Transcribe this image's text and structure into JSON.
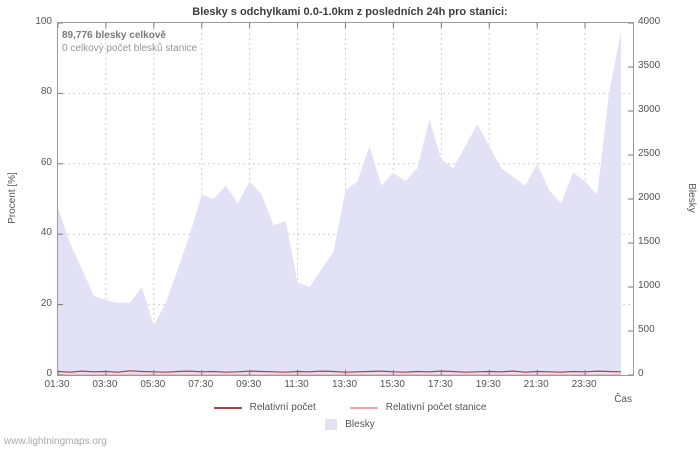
{
  "title": "Blesky s odchylkami 0.0-1.0km z posledních 24h pro stanici:",
  "annotations": {
    "total": "89,776 blesky celkově",
    "station_total": "0 celkový počet blesků stanice"
  },
  "axes": {
    "left_label": "Procent  [%]",
    "right_label": "Blesky",
    "x_label": "Čas"
  },
  "legend": [
    {
      "label": "Relativní počet",
      "type": "line",
      "color": "#a04545"
    },
    {
      "label": "Relativní počet stanice",
      "type": "line",
      "color": "#f2a5a5"
    },
    {
      "label": "Blesky",
      "type": "area",
      "color": "#e2e1f6"
    }
  ],
  "watermark": "www.lightningmaps.org",
  "chart_data": {
    "type": "area",
    "title": "Blesky s odchylkami 0.0-1.0km z posledních 24h pro stanici:",
    "xlabel": "Čas",
    "ylabel_left": "Procent  [%]",
    "ylabel_right": "Blesky",
    "left_ylim": [
      0,
      100
    ],
    "right_ylim": [
      0,
      4000
    ],
    "left_yticks": [
      0,
      20,
      40,
      60,
      80,
      100
    ],
    "right_yticks": [
      0,
      500,
      1000,
      1500,
      2000,
      2500,
      3000,
      3500,
      4000
    ],
    "x_ticks": [
      "01:30",
      "03:30",
      "05:30",
      "07:30",
      "09:30",
      "11:30",
      "13:30",
      "15:30",
      "17:30",
      "19:30",
      "21:30",
      "23:30"
    ],
    "x_span_hours": 24,
    "grid": true,
    "x": [
      "01:30",
      "02:00",
      "02:30",
      "03:00",
      "03:30",
      "04:00",
      "04:30",
      "05:00",
      "05:30",
      "06:00",
      "06:30",
      "07:00",
      "07:30",
      "08:00",
      "08:30",
      "09:00",
      "09:30",
      "10:00",
      "10:30",
      "11:00",
      "11:30",
      "12:00",
      "12:30",
      "13:00",
      "13:30",
      "14:00",
      "14:30",
      "15:00",
      "15:30",
      "16:00",
      "16:30",
      "17:00",
      "17:30",
      "18:00",
      "18:30",
      "19:00",
      "19:30",
      "20:00",
      "20:30",
      "21:00",
      "21:30",
      "22:00",
      "22:30",
      "23:00",
      "23:30",
      "00:00",
      "00:30",
      "01:00"
    ],
    "series": [
      {
        "name": "Blesky",
        "type": "area",
        "axis": "right",
        "color": "#e2e1f6",
        "values": [
          1900,
          1500,
          1200,
          900,
          850,
          820,
          820,
          1000,
          560,
          820,
          1200,
          1600,
          2050,
          2000,
          2150,
          1950,
          2200,
          2050,
          1700,
          1750,
          1050,
          1000,
          1200,
          1400,
          2100,
          2200,
          2600,
          2150,
          2300,
          2200,
          2350,
          2900,
          2450,
          2350,
          2600,
          2850,
          2600,
          2350,
          2250,
          2150,
          2400,
          2100,
          1950,
          2300,
          2200,
          2050,
          3200,
          3900
        ]
      },
      {
        "name": "Relativní počet",
        "type": "line",
        "axis": "left",
        "color": "#a04545",
        "values": [
          1.0,
          0.8,
          1.1,
          0.9,
          1.0,
          0.8,
          1.2,
          1.0,
          0.9,
          0.8,
          1.0,
          1.1,
          0.9,
          1.0,
          0.8,
          0.9,
          1.1,
          1.0,
          0.9,
          0.8,
          1.0,
          0.9,
          1.1,
          1.0,
          0.8,
          0.9,
          1.0,
          1.1,
          0.9,
          0.8,
          1.0,
          0.9,
          1.1,
          1.0,
          0.8,
          0.9,
          1.0,
          0.9,
          1.1,
          0.8,
          1.0,
          0.9,
          0.8,
          1.0,
          0.9,
          1.1,
          1.0,
          0.9
        ]
      },
      {
        "name": "Relativní počet stanice",
        "type": "line",
        "axis": "left",
        "color": "#f2a5a5",
        "values": [
          0,
          0,
          0,
          0,
          0,
          0,
          0,
          0,
          0,
          0,
          0,
          0,
          0,
          0,
          0,
          0,
          0,
          0,
          0,
          0,
          0,
          0,
          0,
          0,
          0,
          0,
          0,
          0,
          0,
          0,
          0,
          0,
          0,
          0,
          0,
          0,
          0,
          0,
          0,
          0,
          0,
          0,
          0,
          0,
          0,
          0,
          0,
          0
        ]
      }
    ]
  }
}
